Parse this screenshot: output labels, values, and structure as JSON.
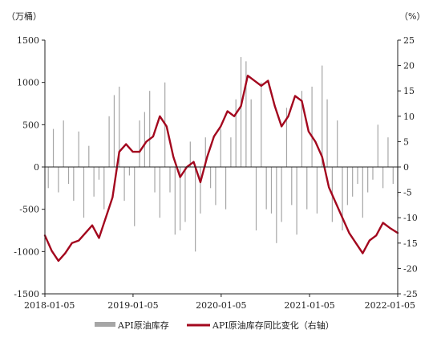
{
  "chart_data": {
    "type": "bar+line",
    "left_axis": {
      "unit": "（万桶）",
      "ylim": [
        -1500,
        1500
      ],
      "ticks": [
        -1500,
        -1000,
        -500,
        0,
        500,
        1000,
        1500
      ]
    },
    "right_axis": {
      "unit": "（%）",
      "ylim": [
        -25,
        25
      ],
      "ticks": [
        -25,
        -20,
        -15,
        -10,
        -5,
        0,
        5,
        10,
        15,
        20,
        25
      ]
    },
    "x_axis": {
      "range": [
        "2018-01-05",
        "2022-01-05"
      ],
      "ticks": [
        "2018-01-05",
        "2019-01-05",
        "2020-01-05",
        "2021-01-05",
        "2022-01-05"
      ]
    },
    "grid": false,
    "legend_position": "bottom",
    "colors": {
      "bars": "#a6a6a6",
      "line": "#a3071e",
      "axis": "#222222"
    },
    "series": [
      {
        "name": "API原油库存",
        "axis": "left",
        "type": "bar",
        "x": [
          "2018-01-19",
          "2018-02-09",
          "2018-03-02",
          "2018-03-23",
          "2018-04-13",
          "2018-05-04",
          "2018-05-25",
          "2018-06-15",
          "2018-07-06",
          "2018-07-27",
          "2018-08-17",
          "2018-09-07",
          "2018-09-28",
          "2018-10-19",
          "2018-11-09",
          "2018-11-30",
          "2018-12-21",
          "2019-01-11",
          "2019-02-01",
          "2019-02-22",
          "2019-03-15",
          "2019-04-05",
          "2019-04-26",
          "2019-05-17",
          "2019-06-07",
          "2019-06-28",
          "2019-07-19",
          "2019-08-09",
          "2019-08-30",
          "2019-09-20",
          "2019-10-11",
          "2019-11-01",
          "2019-11-22",
          "2019-12-13",
          "2020-01-03",
          "2020-01-24",
          "2020-02-14",
          "2020-03-06",
          "2020-03-27",
          "2020-04-17",
          "2020-05-08",
          "2020-05-29",
          "2020-06-19",
          "2020-07-10",
          "2020-07-31",
          "2020-08-21",
          "2020-09-11",
          "2020-10-02",
          "2020-10-23",
          "2020-11-13",
          "2020-12-04",
          "2020-12-25",
          "2021-01-15",
          "2021-02-05",
          "2021-02-26",
          "2021-03-19",
          "2021-04-09",
          "2021-04-30",
          "2021-05-21",
          "2021-06-11",
          "2021-07-02",
          "2021-07-23",
          "2021-08-13",
          "2021-09-03",
          "2021-09-24",
          "2021-10-15",
          "2021-11-05",
          "2021-11-26",
          "2021-12-17",
          "2022-01-05"
        ],
        "values": [
          -250,
          450,
          -300,
          550,
          -200,
          -400,
          420,
          -600,
          250,
          -350,
          -150,
          -500,
          600,
          850,
          950,
          -400,
          -100,
          -700,
          550,
          650,
          900,
          -300,
          -600,
          1000,
          -300,
          -800,
          -750,
          -650,
          300,
          -1000,
          -550,
          350,
          -250,
          -450,
          450,
          -500,
          350,
          800,
          1300,
          1250,
          800,
          -750,
          1000,
          -500,
          -550,
          -900,
          -650,
          700,
          -450,
          -800,
          900,
          -500,
          950,
          -550,
          1200,
          800,
          -650,
          550,
          -750,
          -450,
          -350,
          -200,
          -600,
          -300,
          -150,
          500,
          -250,
          350,
          -200,
          -350
        ]
      },
      {
        "name": "API原油库存同比变化（右轴）",
        "axis": "right",
        "type": "line",
        "x": [
          "2018-01-05",
          "2018-02-02",
          "2018-03-02",
          "2018-03-30",
          "2018-04-27",
          "2018-05-25",
          "2018-06-22",
          "2018-07-20",
          "2018-08-17",
          "2018-09-14",
          "2018-10-12",
          "2018-11-09",
          "2018-12-07",
          "2019-01-04",
          "2019-02-01",
          "2019-03-01",
          "2019-03-29",
          "2019-04-26",
          "2019-05-24",
          "2019-06-21",
          "2019-07-19",
          "2019-08-16",
          "2019-09-13",
          "2019-10-11",
          "2019-11-08",
          "2019-12-06",
          "2020-01-03",
          "2020-01-31",
          "2020-02-28",
          "2020-03-27",
          "2020-04-24",
          "2020-05-22",
          "2020-06-19",
          "2020-07-17",
          "2020-08-14",
          "2020-09-11",
          "2020-10-09",
          "2020-11-06",
          "2020-12-04",
          "2021-01-01",
          "2021-01-29",
          "2021-02-26",
          "2021-03-26",
          "2021-04-23",
          "2021-05-21",
          "2021-06-18",
          "2021-07-16",
          "2021-08-13",
          "2021-09-10",
          "2021-10-08",
          "2021-11-05",
          "2021-12-03",
          "2022-01-05"
        ],
        "values": [
          -13.5,
          -16.5,
          -18.5,
          -17,
          -15,
          -14.5,
          -13,
          -11.5,
          -14,
          -10,
          -6,
          3,
          4.5,
          3,
          3,
          5,
          6,
          10,
          8,
          2,
          -2,
          0,
          1,
          -3,
          2,
          6,
          8,
          11,
          10,
          12,
          18,
          17,
          16,
          17,
          12,
          8,
          10,
          14,
          13,
          7,
          5,
          2,
          -4,
          -7,
          -10,
          -13,
          -15,
          -17,
          -14.5,
          -13.5,
          -11,
          -12,
          -13
        ]
      }
    ]
  }
}
